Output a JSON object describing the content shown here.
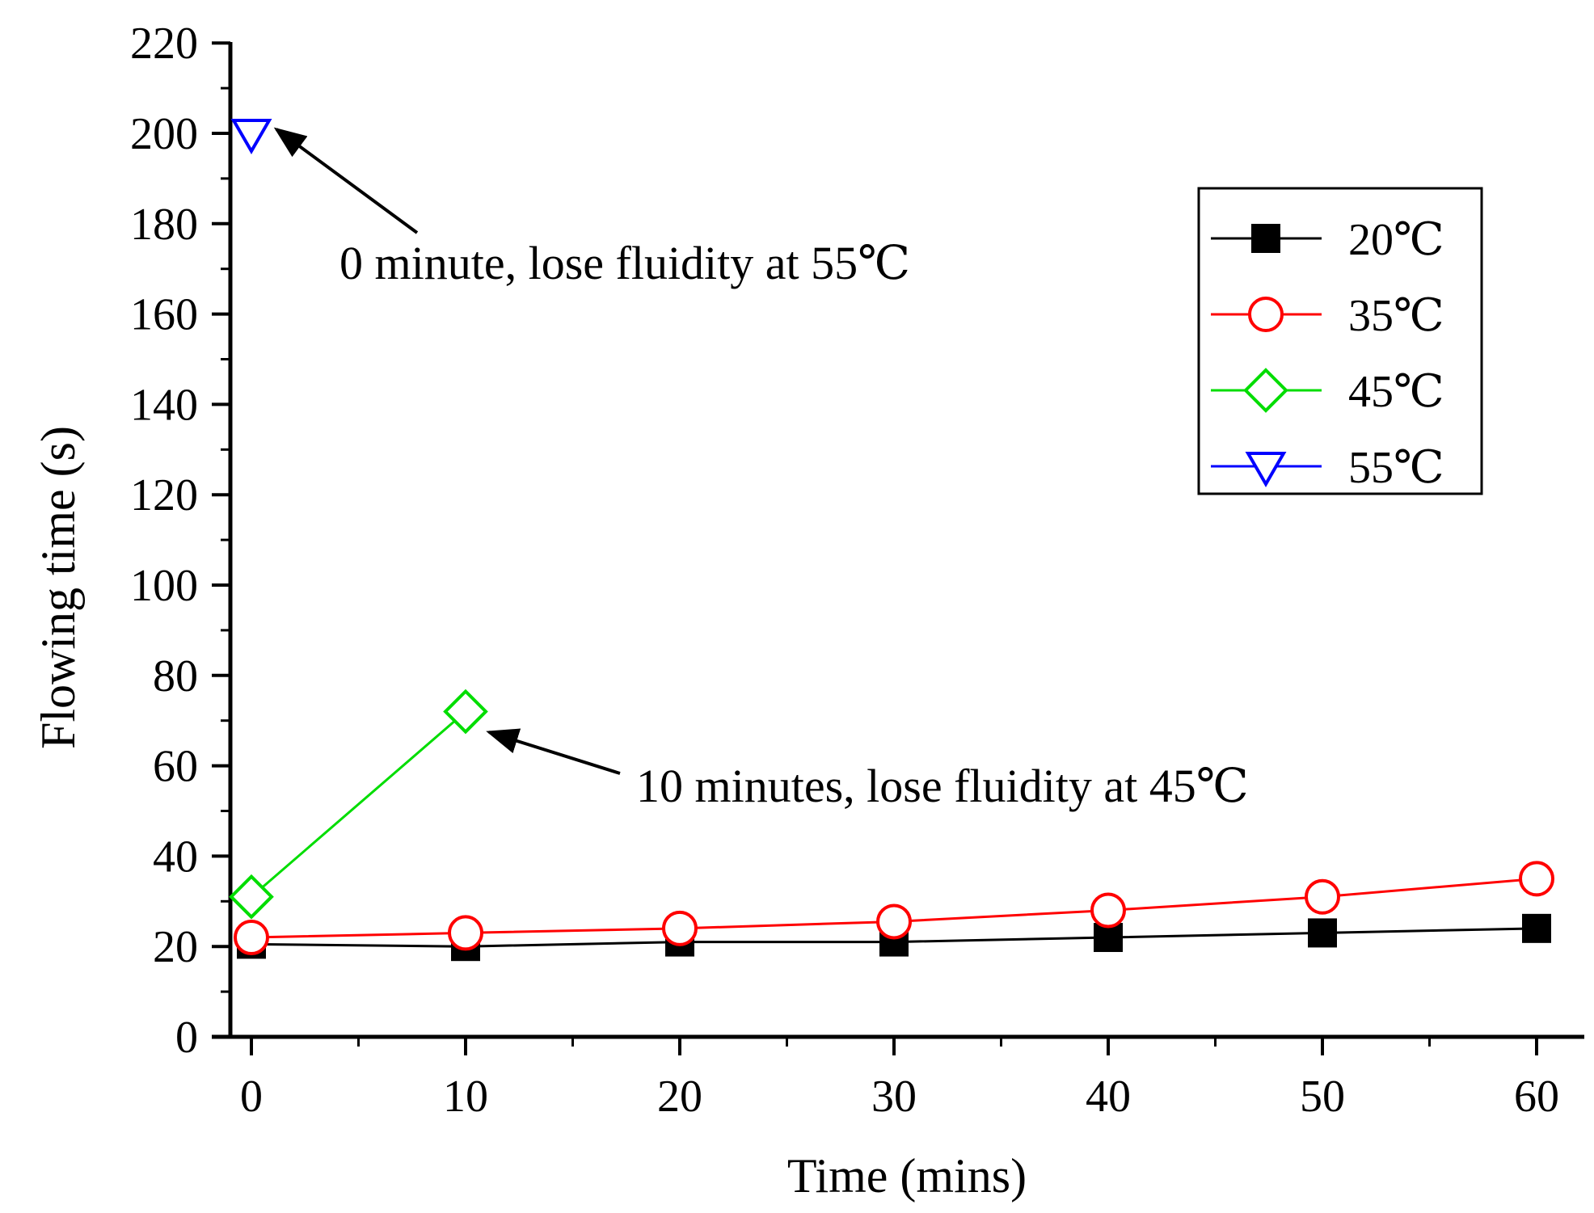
{
  "chart_data": {
    "type": "line",
    "title": "",
    "xlabel": "Time (mins)",
    "ylabel": "Flowing time (s)",
    "xlim": [
      -1,
      62
    ],
    "ylim": [
      0,
      220
    ],
    "xticks": [
      0,
      10,
      20,
      30,
      40,
      50,
      60
    ],
    "yticks": [
      0,
      20,
      40,
      60,
      80,
      100,
      120,
      140,
      160,
      180,
      200,
      220
    ],
    "grid": false,
    "legend_position": "top-right",
    "series": [
      {
        "name": "20℃",
        "color": "#000000",
        "marker": "filled-square",
        "x": [
          0,
          10,
          20,
          30,
          40,
          50,
          60
        ],
        "values": [
          20.5,
          20,
          21,
          21,
          22,
          23,
          24
        ]
      },
      {
        "name": "35℃",
        "color": "#ff0000",
        "marker": "open-circle",
        "x": [
          0,
          10,
          20,
          30,
          40,
          50,
          60
        ],
        "values": [
          22,
          23,
          24,
          25.5,
          28,
          31,
          35
        ]
      },
      {
        "name": "45℃",
        "color": "#00dd00",
        "marker": "open-diamond",
        "x": [
          0,
          10
        ],
        "values": [
          31,
          72
        ]
      },
      {
        "name": "55℃",
        "color": "#0000ff",
        "marker": "open-triangle-down",
        "x": [
          0
        ],
        "values": [
          200
        ]
      }
    ],
    "annotations": [
      {
        "text": "0 minute, lose fluidity at 55℃",
        "arrow_to": [
          0,
          200
        ]
      },
      {
        "text": "10 minutes, lose fluidity at 45℃",
        "arrow_to": [
          10,
          72
        ]
      }
    ]
  }
}
